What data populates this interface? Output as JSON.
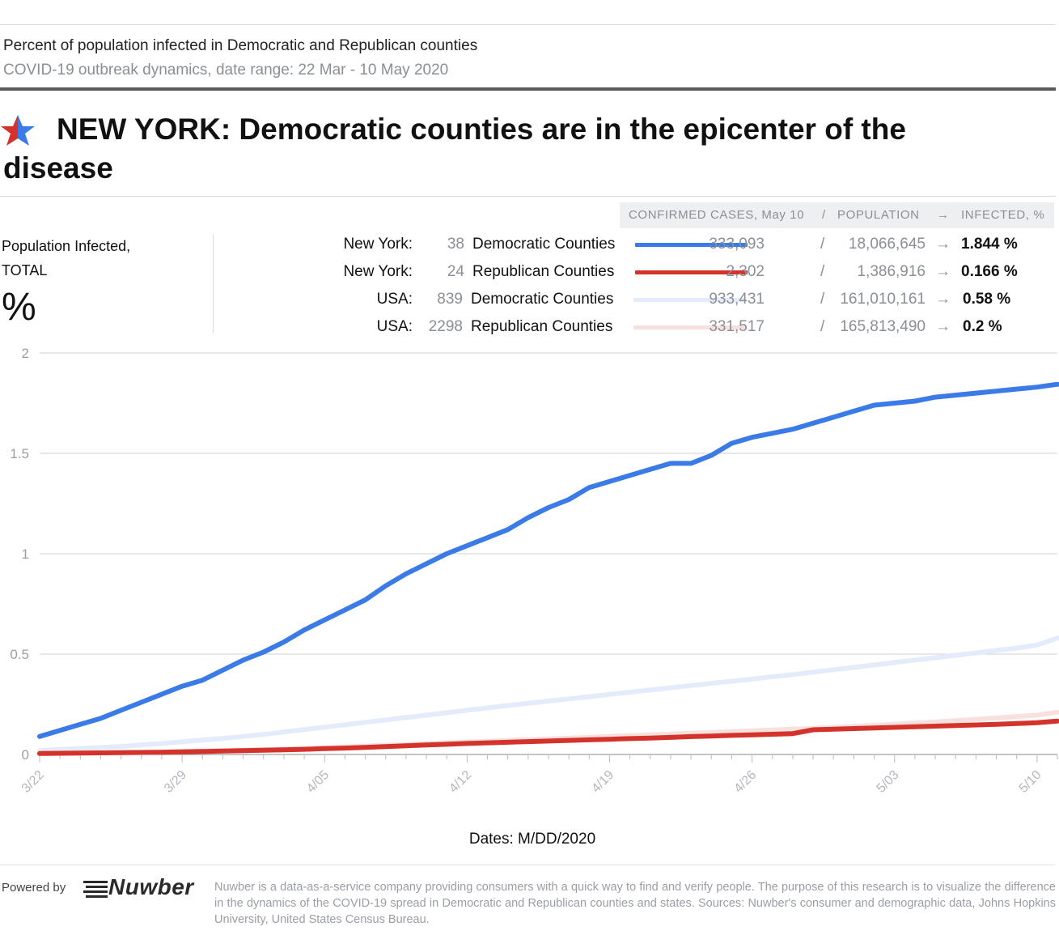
{
  "header": {
    "subtitle": "Percent of population infected in Democratic and Republican counties",
    "date_range": "COVID-19 outbreak dynamics, date range: 22 Mar - 10 May 2020",
    "headline": "NEW YORK: Democratic counties are in the epicenter of the disease",
    "star_colors": {
      "left": "#d4332c",
      "right": "#3a7be8"
    }
  },
  "legend": {
    "header": {
      "cases": "CONFIRMED CASES, May 10",
      "sep1": "/",
      "population": "POPULATION",
      "arrow": "→",
      "infected": "INFECTED, %"
    },
    "rows": [
      {
        "region": "New York:",
        "count": "38",
        "group": "Democratic Counties",
        "cases": "333,093",
        "slash": "/",
        "population": "18,066,645",
        "arrow": "→",
        "infected": "1.844 %",
        "color": "#3a7be8"
      },
      {
        "region": "New York:",
        "count": "24",
        "group": "Republican Counties",
        "cases": "2,302",
        "slash": "/",
        "population": "1,386,916",
        "arrow": "→",
        "infected": "0.166 %",
        "color": "#d4332c"
      },
      {
        "region": "USA:",
        "count": "839",
        "group": "Democratic Counties",
        "cases": "933,431",
        "slash": "/",
        "population": "161,010,161",
        "arrow": "→",
        "infected": "0.58 %",
        "color": "#e4ecfb"
      },
      {
        "region": "USA:",
        "count": "2298",
        "group": "Republican Counties",
        "cases": "331,517",
        "slash": "/",
        "population": "165,813,490",
        "arrow": "→",
        "infected": "0.2 %",
        "color": "#f7e0de"
      }
    ]
  },
  "y_label": {
    "line1": "Population Infected,",
    "line2": "TOTAL",
    "unit": "%"
  },
  "chart_data": {
    "type": "line",
    "title": "NEW YORK: Democratic counties are in the epicenter of the disease",
    "xlabel": "Dates: M/DD/2020",
    "ylabel": "Population Infected, TOTAL %",
    "ylim": [
      0,
      2
    ],
    "yticks": [
      0,
      0.5,
      1,
      1.5,
      2
    ],
    "ytick_labels": [
      "0",
      "0.5",
      "1",
      "1.5",
      "2"
    ],
    "xtick_labels": [
      "3/22",
      "3/29",
      "4/05",
      "4/12",
      "4/19",
      "4/26",
      "5/03",
      "5/10"
    ],
    "x_start": "2020-03-22",
    "x_days": 50,
    "grid": true,
    "series": [
      {
        "name": "USA: Republican Counties",
        "color": "#f7e0de",
        "values": [
          0.005,
          0.006,
          0.007,
          0.008,
          0.009,
          0.01,
          0.012,
          0.014,
          0.016,
          0.018,
          0.021,
          0.024,
          0.027,
          0.03,
          0.034,
          0.038,
          0.042,
          0.046,
          0.05,
          0.054,
          0.058,
          0.062,
          0.066,
          0.07,
          0.074,
          0.078,
          0.082,
          0.086,
          0.09,
          0.094,
          0.098,
          0.102,
          0.106,
          0.11,
          0.114,
          0.118,
          0.122,
          0.126,
          0.13,
          0.135,
          0.14,
          0.145,
          0.15,
          0.156,
          0.162,
          0.168,
          0.175,
          0.182,
          0.189,
          0.196,
          0.21
        ]
      },
      {
        "name": "USA: Democratic Counties",
        "color": "#e4ecfb",
        "values": [
          0.02,
          0.025,
          0.03,
          0.035,
          0.04,
          0.047,
          0.055,
          0.063,
          0.072,
          0.08,
          0.09,
          0.1,
          0.112,
          0.124,
          0.136,
          0.148,
          0.16,
          0.172,
          0.184,
          0.196,
          0.208,
          0.22,
          0.232,
          0.244,
          0.255,
          0.266,
          0.277,
          0.288,
          0.299,
          0.31,
          0.321,
          0.332,
          0.343,
          0.354,
          0.365,
          0.376,
          0.387,
          0.398,
          0.41,
          0.422,
          0.434,
          0.446,
          0.458,
          0.47,
          0.482,
          0.494,
          0.506,
          0.518,
          0.53,
          0.545,
          0.58
        ]
      },
      {
        "name": "New York: Republican Counties",
        "color": "#d4332c",
        "values": [
          0.005,
          0.006,
          0.007,
          0.008,
          0.009,
          0.01,
          0.011,
          0.013,
          0.015,
          0.017,
          0.019,
          0.021,
          0.023,
          0.026,
          0.029,
          0.032,
          0.035,
          0.039,
          0.043,
          0.047,
          0.051,
          0.055,
          0.058,
          0.061,
          0.064,
          0.067,
          0.07,
          0.073,
          0.076,
          0.079,
          0.082,
          0.085,
          0.089,
          0.092,
          0.095,
          0.098,
          0.101,
          0.104,
          0.123,
          0.126,
          0.129,
          0.132,
          0.135,
          0.138,
          0.141,
          0.144,
          0.147,
          0.15,
          0.154,
          0.158,
          0.166
        ]
      },
      {
        "name": "New York: Democratic Counties",
        "color": "#3a7be8",
        "values": [
          0.09,
          0.12,
          0.15,
          0.18,
          0.22,
          0.26,
          0.3,
          0.34,
          0.37,
          0.42,
          0.47,
          0.51,
          0.56,
          0.62,
          0.67,
          0.72,
          0.77,
          0.84,
          0.9,
          0.95,
          1.0,
          1.04,
          1.08,
          1.12,
          1.18,
          1.23,
          1.27,
          1.33,
          1.36,
          1.39,
          1.42,
          1.45,
          1.45,
          1.49,
          1.55,
          1.58,
          1.6,
          1.62,
          1.65,
          1.68,
          1.71,
          1.74,
          1.75,
          1.76,
          1.78,
          1.79,
          1.8,
          1.81,
          1.82,
          1.83,
          1.844
        ]
      }
    ]
  },
  "footer": {
    "powered_by": "Powered by",
    "logo": "Nuwber",
    "note": "Nuwber is a data-as-a-service company providing consumers with a quick way to find and verify people. The purpose of this research is to visualize the difference in the dynamics of the COVID-19 spread in Democratic and Republican counties and states. Sources: Nuwber's consumer and demographic data, Johns Hopkins University, United States Census Bureau."
  }
}
